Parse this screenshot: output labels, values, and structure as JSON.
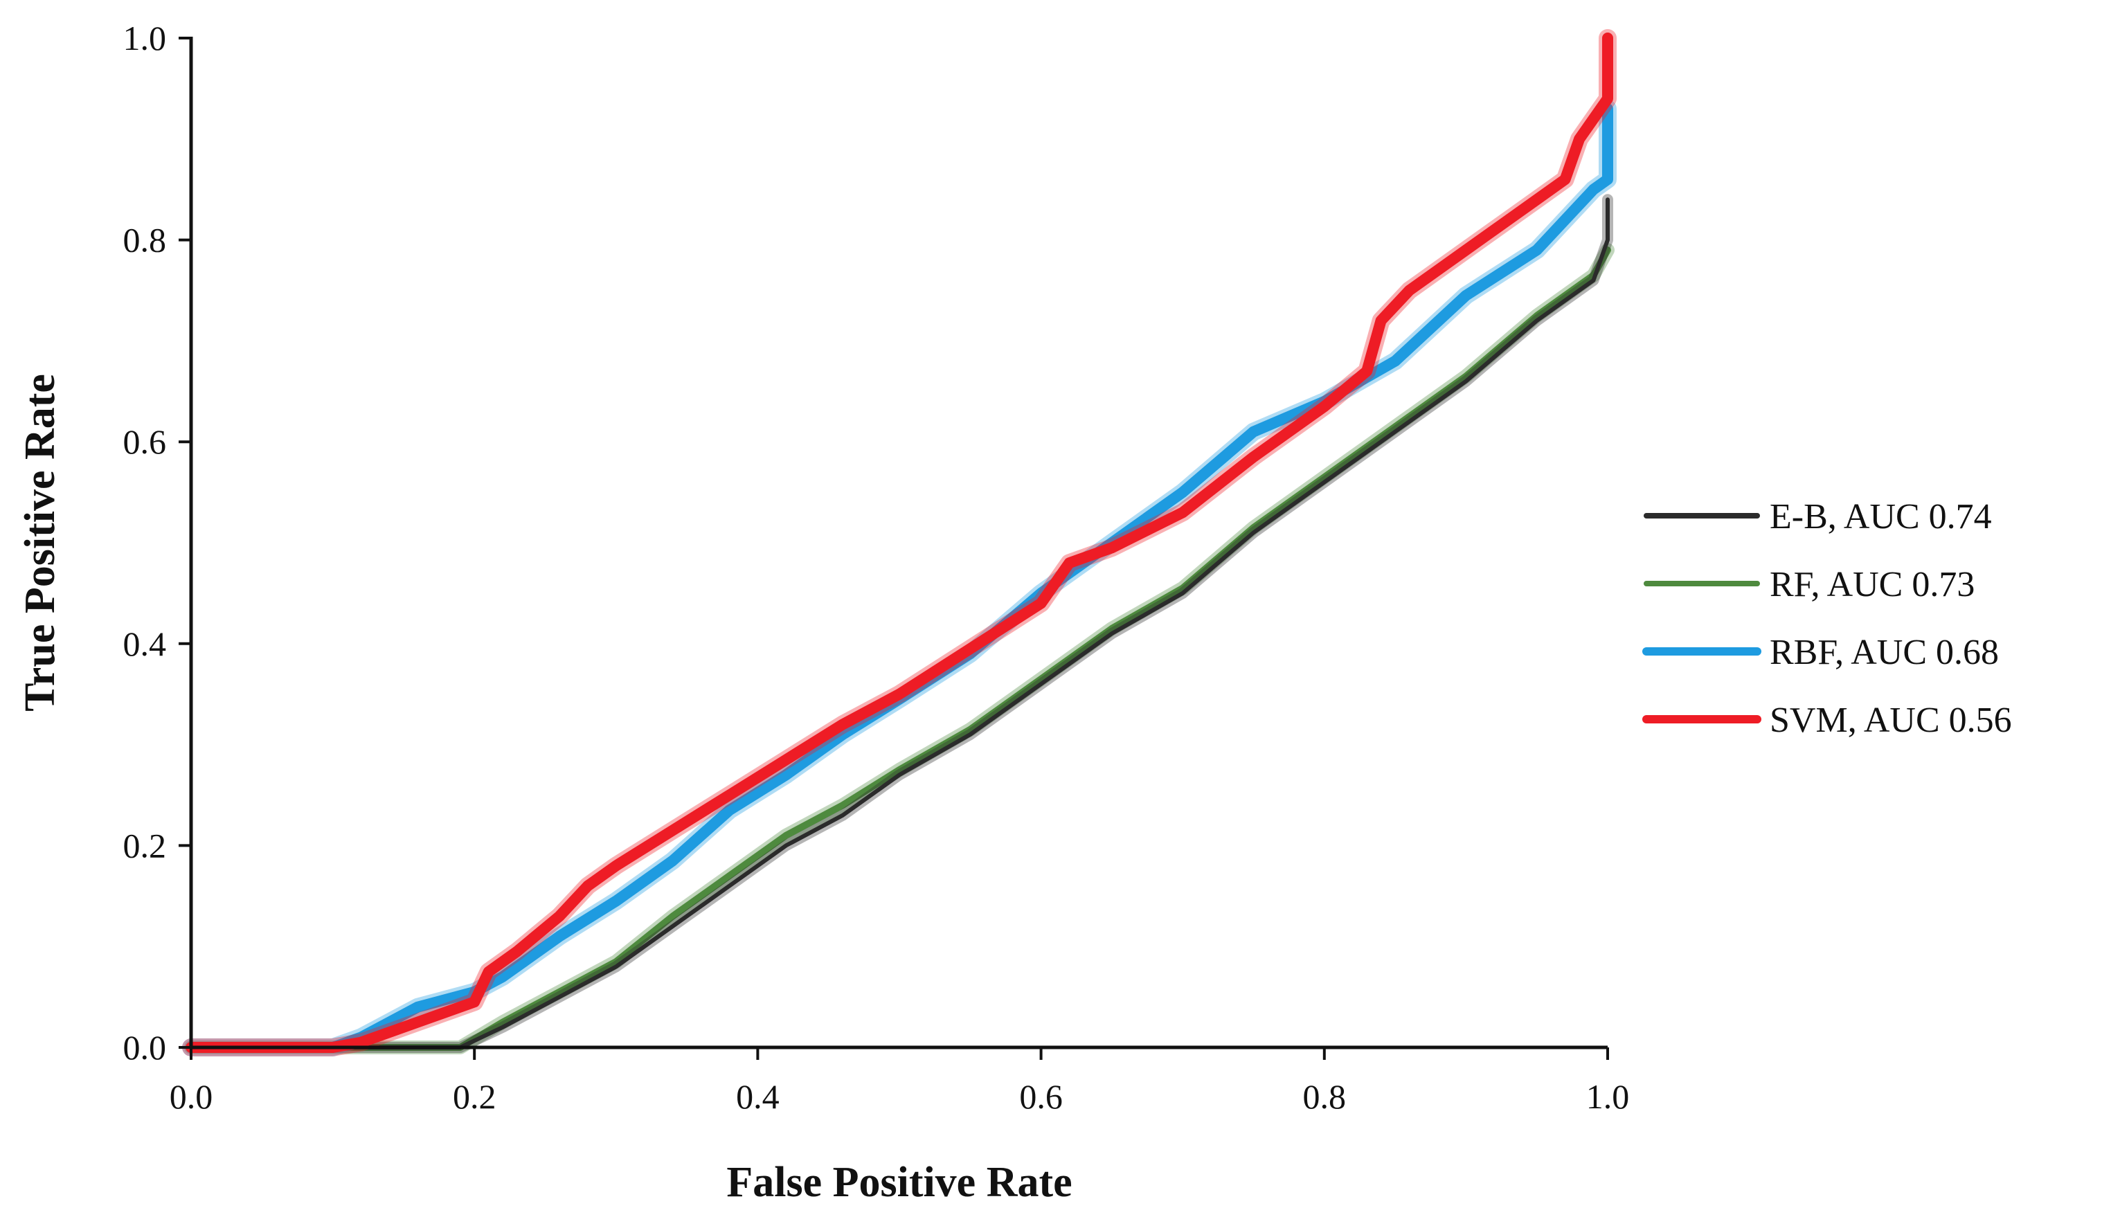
{
  "chart_data": {
    "type": "line",
    "title": "",
    "xlabel": "False Positive Rate",
    "ylabel": "True Positive Rate",
    "xlim": [
      0,
      1
    ],
    "ylim": [
      0,
      1
    ],
    "xticks": [
      0.0,
      0.2,
      0.4,
      0.6,
      0.8,
      1.0
    ],
    "xtick_labels": [
      "0.0",
      "0.2",
      "0.4",
      "0.6",
      "0.8",
      "1.0"
    ],
    "yticks": [
      0.0,
      0.2,
      0.4,
      0.6,
      0.8,
      1.0
    ],
    "ytick_labels": [
      "0.0",
      "0.2",
      "0.4",
      "0.6",
      "0.8",
      "1.0"
    ],
    "grid": false,
    "legend_position": "right",
    "series": [
      {
        "name": "E-B, AUC 0.74",
        "color": "#2b2b2b",
        "x": [
          0.0,
          0.1,
          0.16,
          0.19,
          0.22,
          0.26,
          0.3,
          0.34,
          0.38,
          0.42,
          0.46,
          0.5,
          0.55,
          0.6,
          0.65,
          0.7,
          0.75,
          0.8,
          0.85,
          0.9,
          0.95,
          0.99,
          1.0,
          1.0
        ],
        "y": [
          0.0,
          0.0,
          0.0,
          0.0,
          0.02,
          0.05,
          0.08,
          0.12,
          0.16,
          0.2,
          0.23,
          0.27,
          0.31,
          0.36,
          0.41,
          0.45,
          0.51,
          0.56,
          0.61,
          0.66,
          0.72,
          0.76,
          0.8,
          0.84
        ]
      },
      {
        "name": "RF, AUC 0.73",
        "color": "#4e8a3e",
        "x": [
          0.0,
          0.1,
          0.16,
          0.19,
          0.22,
          0.26,
          0.3,
          0.34,
          0.38,
          0.42,
          0.46,
          0.5,
          0.55,
          0.6,
          0.65,
          0.7,
          0.75,
          0.8,
          0.85,
          0.9,
          0.95,
          0.99,
          1.0
        ],
        "y": [
          0.0,
          0.0,
          0.0,
          0.0,
          0.025,
          0.055,
          0.085,
          0.13,
          0.17,
          0.21,
          0.24,
          0.275,
          0.315,
          0.365,
          0.415,
          0.455,
          0.515,
          0.565,
          0.615,
          0.665,
          0.725,
          0.765,
          0.79
        ]
      },
      {
        "name": "RBF, AUC 0.68",
        "color": "#1e9be0",
        "x": [
          0.0,
          0.1,
          0.12,
          0.16,
          0.2,
          0.22,
          0.26,
          0.3,
          0.34,
          0.38,
          0.42,
          0.46,
          0.5,
          0.55,
          0.6,
          0.65,
          0.7,
          0.75,
          0.8,
          0.85,
          0.9,
          0.95,
          0.99,
          1.0,
          1.0
        ],
        "y": [
          0.0,
          0.0,
          0.01,
          0.04,
          0.055,
          0.07,
          0.11,
          0.145,
          0.185,
          0.235,
          0.27,
          0.31,
          0.345,
          0.39,
          0.45,
          0.5,
          0.55,
          0.61,
          0.64,
          0.68,
          0.745,
          0.79,
          0.85,
          0.86,
          0.93
        ]
      },
      {
        "name": "SVM, AUC 0.56",
        "color": "#ee1c25",
        "x": [
          0.0,
          0.1,
          0.12,
          0.16,
          0.2,
          0.21,
          0.23,
          0.26,
          0.28,
          0.3,
          0.34,
          0.38,
          0.42,
          0.46,
          0.5,
          0.55,
          0.6,
          0.62,
          0.65,
          0.7,
          0.75,
          0.8,
          0.83,
          0.84,
          0.86,
          0.9,
          0.95,
          0.97,
          0.98,
          1.0,
          1.0
        ],
        "y": [
          0.0,
          0.0,
          0.005,
          0.025,
          0.045,
          0.075,
          0.095,
          0.13,
          0.16,
          0.18,
          0.215,
          0.25,
          0.285,
          0.32,
          0.35,
          0.395,
          0.44,
          0.48,
          0.495,
          0.53,
          0.585,
          0.635,
          0.67,
          0.72,
          0.75,
          0.79,
          0.84,
          0.86,
          0.9,
          0.94,
          1.0
        ]
      }
    ]
  }
}
